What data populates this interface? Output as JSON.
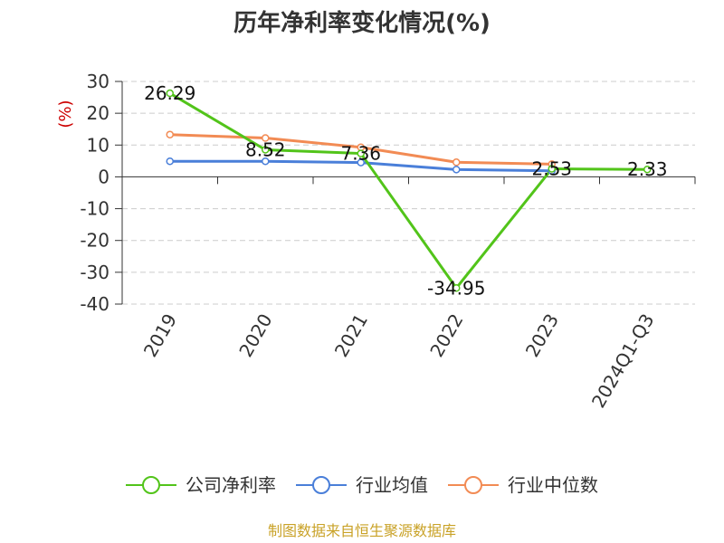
{
  "chart_data": {
    "type": "line",
    "title": "历年净利率变化情况(%)",
    "ylabel": "(%)",
    "categories": [
      "2019",
      "2020",
      "2021",
      "2022",
      "2023",
      "2024Q1-Q3"
    ],
    "ylim": [
      -40,
      30
    ],
    "yticks": [
      30,
      20,
      10,
      0,
      -10,
      -20,
      -30,
      -40
    ],
    "grid": true,
    "legend_position": "bottom",
    "series": [
      {
        "name": "公司净利率",
        "color": "#52c41a",
        "values": [
          26.29,
          8.52,
          7.36,
          -34.95,
          2.53,
          2.33
        ],
        "labels": [
          "26.29",
          "8.52",
          "7.36",
          "-34.95",
          "2.53",
          "2.33"
        ]
      },
      {
        "name": "行业均值",
        "color": "#4a7fd9",
        "values": [
          4.9,
          4.9,
          4.5,
          2.3,
          1.9,
          null
        ]
      },
      {
        "name": "行业中位数",
        "color": "#f28b54",
        "values": [
          13.3,
          12.2,
          9.3,
          4.6,
          4.0,
          null
        ]
      }
    ],
    "source": "制图数据来自恒生聚源数据库",
    "colors": {
      "title": "#333333",
      "ylabel": "#cc0000",
      "source": "#c9a227",
      "axis": "#333333",
      "grid": "#cccccc"
    }
  }
}
